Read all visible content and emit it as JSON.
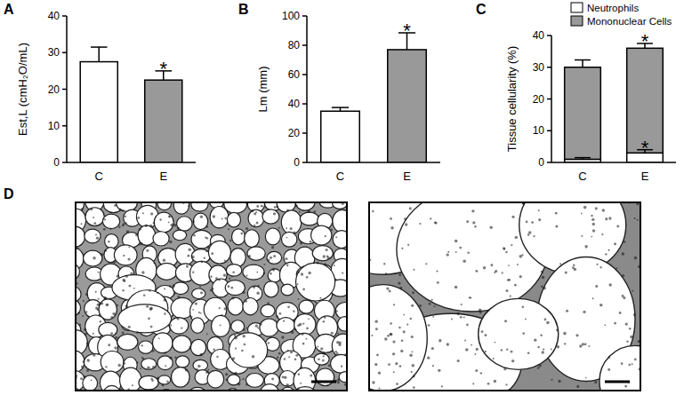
{
  "chart_data": [
    {
      "type": "bar",
      "panel": "A",
      "categories": [
        "C",
        "E"
      ],
      "values": [
        27.5,
        22.5
      ],
      "errors": [
        4,
        2.5
      ],
      "colors": [
        "#ffffff",
        "#999999"
      ],
      "y_label": "Est,L (cmH₂O/mL)",
      "ylim": [
        0,
        40
      ],
      "yticks": [
        0,
        10,
        20,
        30,
        40
      ],
      "annotations": [
        {
          "text": "*",
          "index": 1
        }
      ]
    },
    {
      "type": "bar",
      "panel": "B",
      "categories": [
        "C",
        "E"
      ],
      "values": [
        35,
        77
      ],
      "errors": [
        2.5,
        11.5
      ],
      "colors": [
        "#ffffff",
        "#999999"
      ],
      "y_label": "Lm (mm)",
      "ylim": [
        0,
        100
      ],
      "yticks": [
        0,
        20,
        40,
        60,
        80,
        100
      ],
      "annotations": [
        {
          "text": "*",
          "index": 1
        }
      ]
    },
    {
      "type": "bar",
      "panel": "C",
      "stacked": true,
      "categories": [
        "C",
        "E"
      ],
      "series": [
        {
          "name": "Neutrophils",
          "color": "#ffffff",
          "values": [
            1,
            3
          ],
          "errors": [
            0.5,
            1
          ]
        },
        {
          "name": "Mononuclear Cells",
          "color": "#999999",
          "values": [
            29,
            33
          ],
          "errors": [
            2.3,
            1.5
          ]
        }
      ],
      "y_label": "Tissue cellularity (%)",
      "ylim": [
        0,
        40
      ],
      "yticks": [
        0,
        10,
        20,
        30,
        40
      ],
      "legend": "upper right",
      "annotations": [
        {
          "text": "*",
          "index": 1,
          "series": 1
        },
        {
          "text": "*",
          "index": 1,
          "series": 0
        }
      ]
    }
  ],
  "panel_d": {
    "label": "D"
  }
}
